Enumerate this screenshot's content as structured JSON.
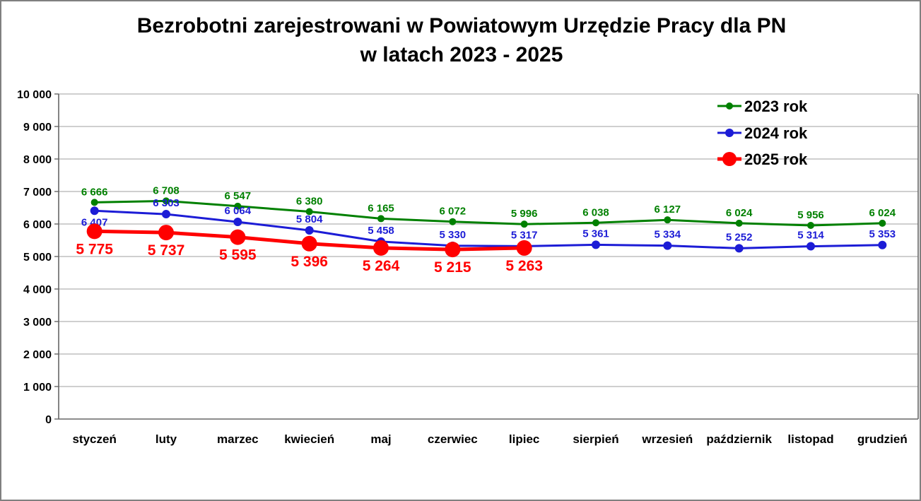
{
  "frame": {
    "background": "#FFFFFF",
    "border_color": "#808080"
  },
  "title": {
    "line1": "Bezrobotni zarejestrowani w Powiatowym Urzędzie Pracy dla PN",
    "line2": "w latach 2023 - 2025"
  },
  "chart_data": {
    "type": "line",
    "title": "Bezrobotni zarejestrowani w Powiatowym Urzędzie Pracy dla PN w latach 2023 - 2025",
    "categories": [
      "styczeń",
      "luty",
      "marzec",
      "kwiecień",
      "maj",
      "czerwiec",
      "lipiec",
      "sierpień",
      "wrzesień",
      "październik",
      "listopad",
      "grudzień"
    ],
    "series": [
      {
        "name": "2023 rok",
        "color": "#008000",
        "values": [
          6666,
          6708,
          6547,
          6380,
          6165,
          6072,
          5996,
          6038,
          6127,
          6024,
          5956,
          6024
        ],
        "marker_radius": 5,
        "line_width": 3,
        "label_side": "above",
        "label_font_size": 15
      },
      {
        "name": "2024 rok",
        "color": "#1C1CD6",
        "values": [
          6407,
          6303,
          6064,
          5804,
          5458,
          5330,
          5317,
          5361,
          5334,
          5252,
          5314,
          5353
        ],
        "marker_radius": 6,
        "line_width": 3,
        "label_side": "above",
        "label_side_overrides": {
          "0": "below"
        },
        "label_font_size": 15
      },
      {
        "name": "2025 rok",
        "color": "#FF0000",
        "values": [
          5775,
          5737,
          5595,
          5396,
          5264,
          5215,
          5263,
          null,
          null,
          null,
          null,
          null
        ],
        "marker_radius": 11,
        "line_width": 5,
        "label_side": "below",
        "label_font_size": 21
      }
    ],
    "ylim": [
      0,
      10000
    ],
    "ytick_step": 1000,
    "ytick_labels": [
      "0",
      "1 000",
      "2 000",
      "3 000",
      "4 000",
      "5 000",
      "6 000",
      "7 000",
      "8 000",
      "9 000",
      "10 000"
    ],
    "grid": true,
    "gridline_color": "#BFBFBF",
    "axis_color": "#666666",
    "text_color": "#000000",
    "legend_position": "top-right",
    "legend": [
      "2023 rok",
      "2024 rok",
      "2025 rok"
    ],
    "number_format": "space-thousands"
  }
}
